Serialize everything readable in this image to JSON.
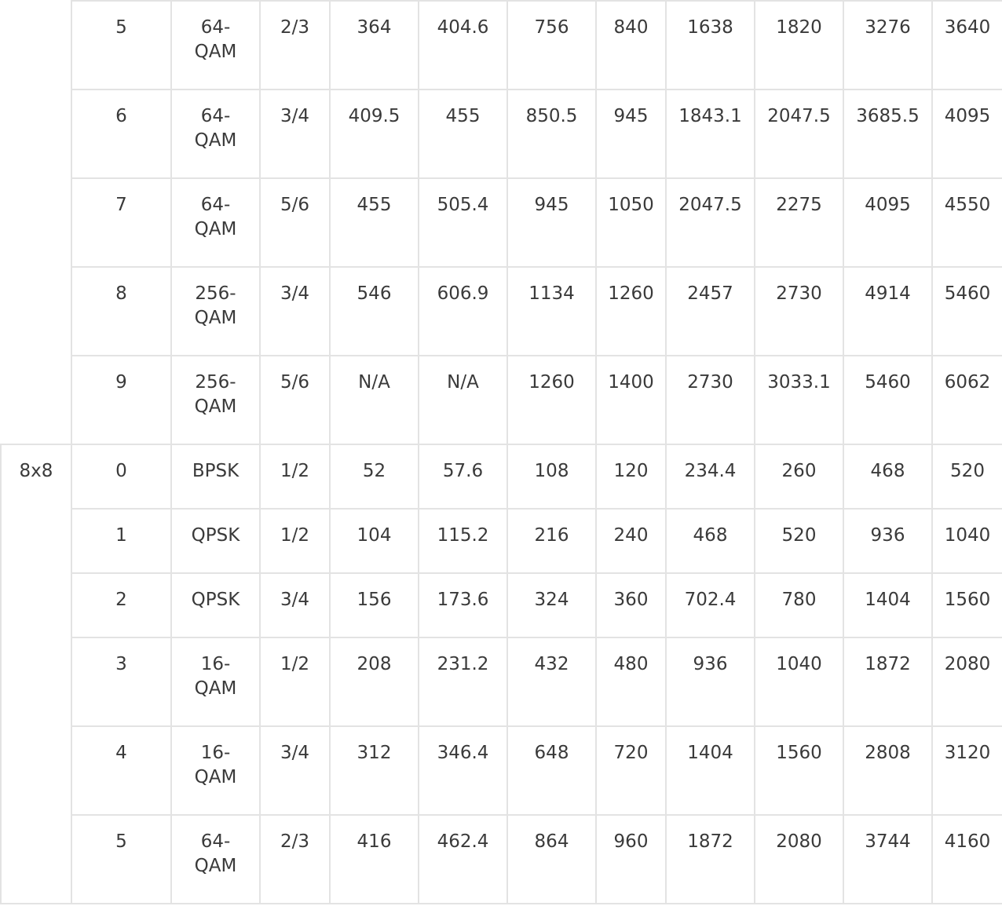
{
  "groups": [
    {
      "label": "",
      "rows": [
        {
          "mcs": "5",
          "modulation": "64-\nQAM",
          "coding": "2/3",
          "v": [
            "364",
            "404.6",
            "756",
            "840",
            "1638",
            "1820",
            "3276",
            "3640"
          ]
        },
        {
          "mcs": "6",
          "modulation": "64-\nQAM",
          "coding": "3/4",
          "v": [
            "409.5",
            "455",
            "850.5",
            "945",
            "1843.1",
            "2047.5",
            "3685.5",
            "4095"
          ]
        },
        {
          "mcs": "7",
          "modulation": "64-\nQAM",
          "coding": "5/6",
          "v": [
            "455",
            "505.4",
            "945",
            "1050",
            "2047.5",
            "2275",
            "4095",
            "4550"
          ]
        },
        {
          "mcs": "8",
          "modulation": "256-\nQAM",
          "coding": "3/4",
          "v": [
            "546",
            "606.9",
            "1134",
            "1260",
            "2457",
            "2730",
            "4914",
            "5460"
          ]
        },
        {
          "mcs": "9",
          "modulation": "256-\nQAM",
          "coding": "5/6",
          "v": [
            "N/A",
            "N/A",
            "1260",
            "1400",
            "2730",
            "3033.1",
            "5460",
            "6062"
          ]
        }
      ]
    },
    {
      "label": "8x8",
      "rows": [
        {
          "mcs": "0",
          "modulation": "BPSK",
          "coding": "1/2",
          "v": [
            "52",
            "57.6",
            "108",
            "120",
            "234.4",
            "260",
            "468",
            "520"
          ]
        },
        {
          "mcs": "1",
          "modulation": "QPSK",
          "coding": "1/2",
          "v": [
            "104",
            "115.2",
            "216",
            "240",
            "468",
            "520",
            "936",
            "1040"
          ]
        },
        {
          "mcs": "2",
          "modulation": "QPSK",
          "coding": "3/4",
          "v": [
            "156",
            "173.6",
            "324",
            "360",
            "702.4",
            "780",
            "1404",
            "1560"
          ]
        },
        {
          "mcs": "3",
          "modulation": "16-\nQAM",
          "coding": "1/2",
          "v": [
            "208",
            "231.2",
            "432",
            "480",
            "936",
            "1040",
            "1872",
            "2080"
          ]
        },
        {
          "mcs": "4",
          "modulation": "16-\nQAM",
          "coding": "3/4",
          "v": [
            "312",
            "346.4",
            "648",
            "720",
            "1404",
            "1560",
            "2808",
            "3120"
          ]
        },
        {
          "mcs": "5",
          "modulation": "64-\nQAM",
          "coding": "2/3",
          "v": [
            "416",
            "462.4",
            "864",
            "960",
            "1872",
            "2080",
            "3744",
            "4160"
          ]
        }
      ]
    }
  ]
}
